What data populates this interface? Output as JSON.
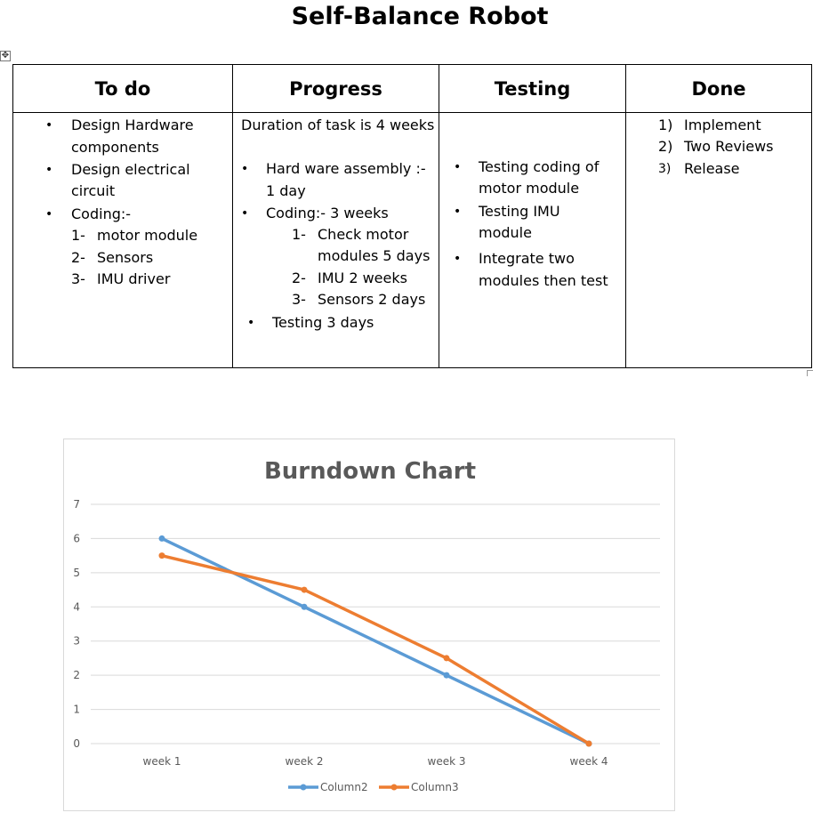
{
  "document": {
    "title": "Self-Balance Robot"
  },
  "board": {
    "headers": [
      "To  do",
      "Progress",
      "Testing",
      "Done"
    ],
    "todo": {
      "bullets": [
        "Design Hardware",
        "components",
        "Design electrical",
        "circuit",
        "Coding:-"
      ],
      "numbers": [
        "1-",
        "2-",
        "3-"
      ],
      "numbered": [
        "motor module",
        "Sensors",
        "IMU driver"
      ]
    },
    "progress": {
      "intro": "Duration of task is 4 weeks",
      "lines": [
        "Hard ware assembly :-",
        "1 day",
        "Coding:- 3 weeks"
      ],
      "numbers": [
        "1-",
        "2-",
        "3-"
      ],
      "numbered": [
        "Check motor",
        "modules 5 days",
        "IMU 2 weeks",
        "Sensors 2 days"
      ],
      "last": "Testing 3 days"
    },
    "testing": {
      "lines": [
        "Testing coding of",
        "motor module",
        "Testing IMU",
        "module",
        "Integrate two",
        "modules then test"
      ]
    },
    "done": {
      "numbers": [
        "1)",
        "2)",
        "3)"
      ],
      "items": [
        "Implement",
        "Two Reviews",
        "Release"
      ]
    },
    "bullet_glyph": "•"
  },
  "chart_data": {
    "type": "line",
    "title": "Burndown Chart",
    "categories": [
      "week 1",
      "week 2",
      "week 3",
      "week 4"
    ],
    "series": [
      {
        "name": "Column2",
        "values": [
          6,
          4,
          2,
          0
        ],
        "color": "#5B9BD5"
      },
      {
        "name": "Column3",
        "values": [
          5.5,
          4.5,
          2.5,
          0
        ],
        "color": "#ED7D31"
      }
    ],
    "ylim": [
      0,
      7
    ],
    "yticks": [
      "0",
      "1",
      "2",
      "3",
      "4",
      "5",
      "6",
      "7"
    ],
    "grid": true,
    "legend": "bottom"
  }
}
